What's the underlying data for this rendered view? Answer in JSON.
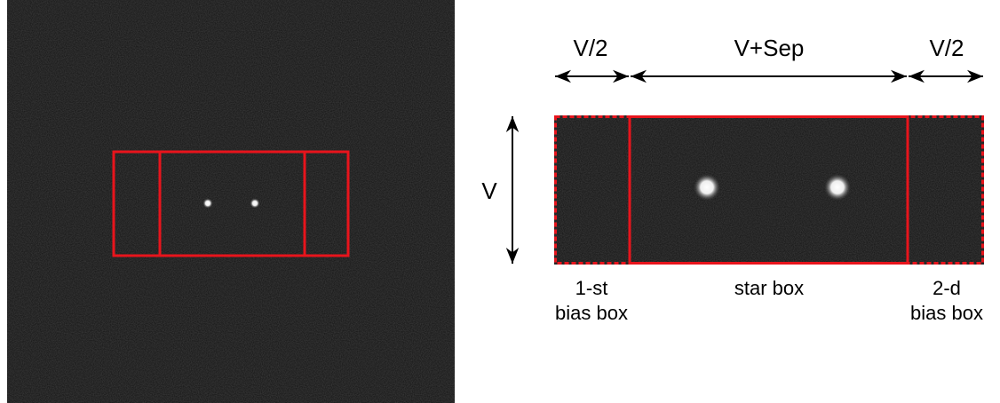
{
  "top_labels": [
    "V/2",
    "V+Sep",
    "V/2"
  ],
  "side_label": "V",
  "box_labels": [
    [
      "1-st",
      "bias box"
    ],
    [
      "star box"
    ],
    [
      "2-d",
      "bias box"
    ]
  ]
}
